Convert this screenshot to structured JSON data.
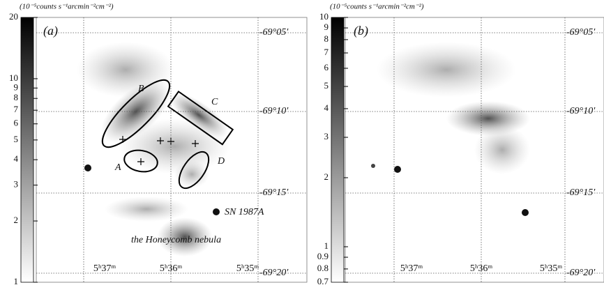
{
  "panels": [
    {
      "label": "(a)",
      "unit": "(10⁻⁵counts s⁻¹arcmin⁻²cm⁻²)",
      "colorbar": {
        "range": [
          1,
          20
        ],
        "ticks": [
          20,
          10,
          9,
          8,
          7,
          6,
          5,
          4,
          3,
          2,
          1
        ]
      },
      "ra_labels": [
        "5ʰ37ᵐ",
        "5ʰ36ᵐ",
        "5ʰ35ᵐ"
      ],
      "dec_labels": [
        "-69°05′",
        "-69°10′",
        "-69°15′",
        "-69°20′"
      ],
      "annotations": [
        "B",
        "C",
        "A",
        "D",
        "SN 1987A",
        "the Honeycomb nebula"
      ]
    },
    {
      "label": "(b)",
      "unit": "(10⁻⁵counts s⁻¹arcmin⁻²cm⁻²)",
      "colorbar": {
        "range": [
          0.7,
          10
        ],
        "ticks": [
          10,
          9,
          8,
          7,
          6,
          5,
          4,
          3,
          2,
          1,
          0.9,
          0.8,
          0.7
        ]
      },
      "ra_labels": [
        "5ʰ37ᵐ",
        "5ʰ36ᵐ",
        "5ʰ35ᵐ"
      ],
      "dec_labels": [
        "-69°05′",
        "-69°10′",
        "-69°15′",
        "-69°20′"
      ],
      "annotations": []
    }
  ]
}
